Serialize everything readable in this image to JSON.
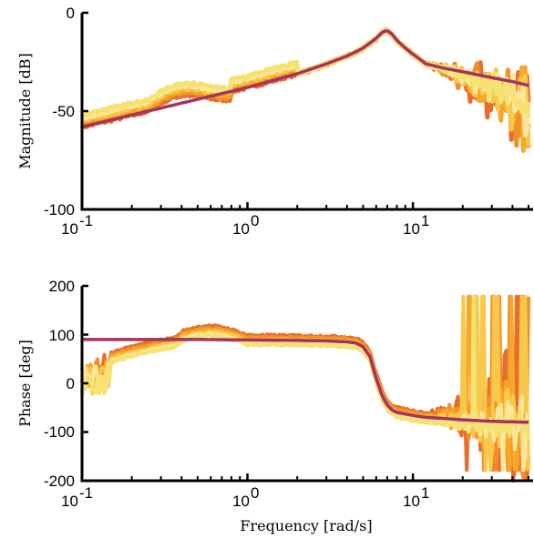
{
  "chart_data": [
    {
      "type": "line",
      "ylabel": "Magnitude [dB]",
      "xlabel": "",
      "xscale": "log",
      "xlim": [
        0.1,
        50
      ],
      "ylim": [
        -100,
        0
      ],
      "yticks": [
        0,
        -50,
        -100
      ],
      "xticks": [
        {
          "base": "10",
          "exp": "-1"
        },
        {
          "base": "10",
          "exp": "0"
        },
        {
          "base": "10",
          "exp": "1"
        }
      ],
      "grid": false,
      "legend": "none",
      "band_colors": [
        "#f6e173",
        "#fbe79a",
        "#f8c84a",
        "#f6a829",
        "#f08f2c",
        "#e86c2a"
      ],
      "model_color": "#a6335f",
      "model_curve": {
        "x": [
          0.1,
          0.2,
          0.5,
          1,
          2,
          3,
          4,
          5,
          6,
          6.5,
          7,
          7.5,
          8,
          9,
          10,
          12,
          15,
          20,
          30,
          40,
          50
        ],
        "y": [
          -58,
          -52,
          -44,
          -38,
          -31,
          -26,
          -22,
          -18,
          -13,
          -10,
          -9,
          -11,
          -14,
          -18,
          -21,
          -26,
          -28,
          -30,
          -33,
          -35,
          -37
        ]
      }
    },
    {
      "type": "line",
      "ylabel": "Phase [deg]",
      "xlabel": "Frequency [rad/s]",
      "xscale": "log",
      "xlim": [
        0.1,
        50
      ],
      "ylim": [
        -200,
        200
      ],
      "yticks": [
        200,
        100,
        0,
        -100,
        -200
      ],
      "xticks": [
        {
          "base": "10",
          "exp": "-1"
        },
        {
          "base": "10",
          "exp": "0"
        },
        {
          "base": "10",
          "exp": "1"
        }
      ],
      "grid": false,
      "legend": "none",
      "band_colors": [
        "#f6e173",
        "#fbe79a",
        "#f8c84a",
        "#f6a829",
        "#f08f2c",
        "#e86c2a"
      ],
      "model_color": "#a6335f",
      "model_curve": {
        "x": [
          0.1,
          0.5,
          1,
          2,
          3,
          4,
          4.5,
          5,
          5.5,
          6,
          6.5,
          7,
          7.5,
          8,
          9,
          10,
          12,
          15,
          20,
          30,
          50
        ],
        "y": [
          90,
          90,
          89,
          88,
          87,
          85,
          83,
          75,
          55,
          10,
          -25,
          -45,
          -55,
          -60,
          -63,
          -66,
          -70,
          -72,
          -75,
          -78,
          -80
        ]
      }
    }
  ]
}
